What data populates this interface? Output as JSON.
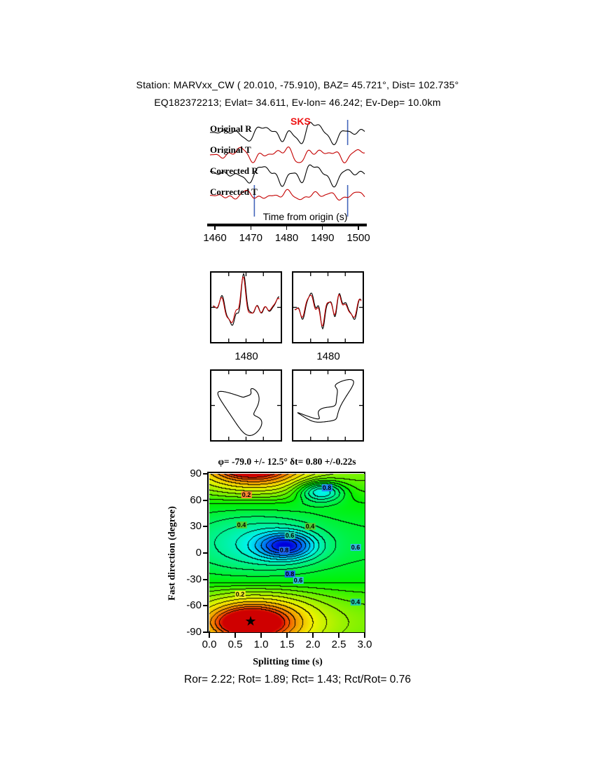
{
  "colors": {
    "black": "#000000",
    "red_trace": "#c40000",
    "blue_marker": "#4466bb",
    "sks_red": "#ee1111",
    "bg": "#ffffff"
  },
  "header": {
    "line1": "Station: MARVxx_CW (  20.010,  -75.910), BAZ=   45.721°, Dist=  102.735°",
    "line2": "EQ182372213; Evlat=  34.611, Ev-lon=  46.242; Ev-Dep= 10.0km"
  },
  "traces": {
    "labels": [
      "Original R",
      "Original T",
      "Corrected R",
      "Corrected T"
    ],
    "phase_label": "SKS",
    "axis_title": "Time from origin (s)"
  },
  "comparison": {
    "x_labels": [
      "1480",
      "1480"
    ]
  },
  "contour": {
    "title": "φ= -79.0 +/- 12.5°  δt= 0.80 +/-0.22s",
    "xlabel": "Splitting time (s)",
    "ylabel": "Fast direction (degree)",
    "x_ticks": [
      "0.0",
      "0.5",
      "1.0",
      "1.5",
      "2.0",
      "2.5",
      "3.0"
    ],
    "y_ticks": [
      "90",
      "60",
      "30",
      "0",
      "-30",
      "-60",
      "-90"
    ],
    "best_dt": 0.8,
    "best_phi": -79,
    "star": "★",
    "contour_labels": [
      {
        "text": "0.2",
        "dt": 0.72,
        "phi": 66,
        "bg": "#ff8833",
        "fg": "#000000"
      },
      {
        "text": "0.8",
        "dt": 2.27,
        "phi": 74,
        "bg": "#2288ee",
        "fg": "#000000"
      },
      {
        "text": "0.4",
        "dt": 0.62,
        "phi": 32,
        "bg": "#55cc33",
        "fg": "#000000"
      },
      {
        "text": "0.4",
        "dt": 1.95,
        "phi": 30,
        "bg": "#55cc33",
        "fg": "#000000"
      },
      {
        "text": "0.6",
        "dt": 1.55,
        "phi": 20,
        "bg": "#22ccaa",
        "fg": "#000000"
      },
      {
        "text": "0.8",
        "dt": 1.45,
        "phi": 3,
        "bg": "#2266ee",
        "fg": "#000000"
      },
      {
        "text": "0.6",
        "dt": 2.82,
        "phi": 6,
        "bg": "#33bbdd",
        "fg": "#000000"
      },
      {
        "text": "0.8",
        "dt": 1.55,
        "phi": -24,
        "bg": "#2266ee",
        "fg": "#000000"
      },
      {
        "text": "0.6",
        "dt": 1.72,
        "phi": -31,
        "bg": "#33bbdd",
        "fg": "#000000"
      },
      {
        "text": "0.2",
        "dt": 0.6,
        "phi": -47,
        "bg": "#eeee22",
        "fg": "#000000"
      },
      {
        "text": "0.4",
        "dt": 2.82,
        "phi": -56,
        "bg": "#22ccaa",
        "fg": "#000000"
      }
    ]
  },
  "footer": {
    "summary": "Ror= 2.22; Rot= 1.89; Rct= 1.43; Rct/Rot= 0.76"
  },
  "chart_data": [
    {
      "type": "line",
      "title": "SKS splitting waveforms (original and corrected radial/transverse)",
      "x_label": "Time from origin (s)",
      "x_range": [
        1460,
        1500
      ],
      "x_ticks": [
        1460,
        1470,
        1480,
        1490,
        1500
      ],
      "window_markers": [
        {
          "time": 1497,
          "span": "upper"
        },
        {
          "time": 1471,
          "span": "lower"
        },
        {
          "time": 1497,
          "span": "lower"
        }
      ],
      "series": [
        {
          "key": "original-r",
          "name": "Original R",
          "color": "#000000",
          "baseline": 27,
          "amp": 10.5,
          "env": [
            0.6,
            0.26,
            0.4
          ],
          "harmonics": [
            [
              1.0,
              3.1,
              0.12
            ],
            [
              0.8,
              5.2,
              0.55
            ],
            [
              0.55,
              8.3,
              0.82
            ],
            [
              0.3,
              13.7,
              0.31
            ]
          ]
        },
        {
          "key": "original-t",
          "name": "Original T",
          "color": "#c40000",
          "baseline": 57,
          "amp": 6.0,
          "env": [
            0.52,
            0.4,
            0.65
          ],
          "harmonics": [
            [
              1.0,
              3.4,
              0.72
            ],
            [
              0.8,
              6.1,
              0.18
            ],
            [
              0.6,
              9.2,
              0.4
            ],
            [
              0.35,
              14.3,
              0.9
            ]
          ]
        },
        {
          "key": "corrected-r",
          "name": "Corrected R",
          "color": "#000000",
          "baseline": 86,
          "amp": 10.5,
          "env": [
            0.58,
            0.28,
            0.42
          ],
          "harmonics": [
            [
              1.0,
              3.1,
              0.17
            ],
            [
              0.8,
              5.2,
              0.5
            ],
            [
              0.55,
              8.3,
              0.77
            ],
            [
              0.3,
              13.7,
              0.36
            ]
          ]
        },
        {
          "key": "corrected-t",
          "name": "Corrected T",
          "color": "#c40000",
          "baseline": 116,
          "amp": 3.6,
          "env": [
            0.5,
            0.5,
            0.75
          ],
          "harmonics": [
            [
              1.0,
              3.8,
              0.42
            ],
            [
              0.8,
              6.6,
              0.83
            ],
            [
              0.6,
              10.1,
              0.11
            ],
            [
              0.35,
              15.2,
              0.63
            ]
          ]
        }
      ]
    },
    {
      "type": "line",
      "title": "Windowed waveform comparison (black vs red)",
      "panels": [
        {
          "series": [
            {
              "key": "cmp1-black",
              "color": "#000000",
              "amp": 20,
              "env": [
                0.42,
                0.2,
                0.3
              ],
              "harmonics": [
                [
                  1.0,
                  2.3,
                  0.1
                ],
                [
                  0.85,
                  3.7,
                  0.62
                ],
                [
                  0.6,
                  6.2,
                  0.3
                ],
                [
                  0.35,
                  9.6,
                  0.81
                ]
              ]
            },
            {
              "key": "cmp1-red",
              "color": "#c40000",
              "amp": 18,
              "env": [
                0.42,
                0.2,
                0.3
              ],
              "harmonics": [
                [
                  1.0,
                  2.3,
                  0.135
                ],
                [
                  0.85,
                  3.7,
                  0.655
                ],
                [
                  0.6,
                  6.2,
                  0.335
                ],
                [
                  0.35,
                  9.6,
                  0.845
                ]
              ]
            }
          ]
        },
        {
          "series": [
            {
              "key": "cmp2-black",
              "color": "#000000",
              "amp": 17,
              "env": [
                0.5,
                0.24,
                0.38
              ],
              "harmonics": [
                [
                  1.0,
                  2.6,
                  0.55
                ],
                [
                  0.85,
                  4.1,
                  0.2
                ],
                [
                  0.6,
                  6.8,
                  0.75
                ],
                [
                  0.35,
                  10.4,
                  0.4
                ]
              ]
            },
            {
              "key": "cmp2-red",
              "color": "#c40000",
              "amp": 15,
              "env": [
                0.5,
                0.24,
                0.38
              ],
              "harmonics": [
                [
                  1.0,
                  2.6,
                  0.585
                ],
                [
                  0.85,
                  4.1,
                  0.235
                ],
                [
                  0.6,
                  6.8,
                  0.785
                ],
                [
                  0.35,
                  10.4,
                  0.435
                ]
              ]
            }
          ]
        }
      ]
    },
    {
      "type": "scatter",
      "title": "Particle motion (original, corrected)",
      "panels": [
        {
          "x_harmonics": [
            [
              22,
              1,
              0.0
            ],
            [
              11,
              2,
              0.35
            ],
            [
              6,
              3,
              0.7
            ],
            [
              3,
              5,
              0.15
            ]
          ],
          "y_harmonics": [
            [
              26,
              1,
              0.27
            ],
            [
              12,
              2,
              0.8
            ],
            [
              7,
              3,
              0.05
            ],
            [
              4,
              4,
              0.55
            ]
          ]
        },
        {
          "x_harmonics": [
            [
              28,
              1,
              0.05
            ],
            [
              10,
              2,
              0.5
            ],
            [
              6,
              4,
              0.2
            ],
            [
              3,
              6,
              0.65
            ]
          ],
          "y_harmonics": [
            [
              25,
              1,
              0.1
            ],
            [
              11,
              2,
              0.85
            ],
            [
              5,
              3,
              0.45
            ],
            [
              3,
              5,
              0.9
            ]
          ]
        }
      ]
    },
    {
      "type": "heatmap",
      "title": "Splitting parameter misfit surface",
      "xlabel": "Splitting time (s)",
      "ylabel": "Fast direction (degree)",
      "x_range": [
        0,
        3
      ],
      "y_range": [
        -90,
        90
      ],
      "x_ticks": [
        0.0,
        0.5,
        1.0,
        1.5,
        2.0,
        2.5,
        3.0
      ],
      "y_ticks": [
        90,
        60,
        30,
        0,
        -30,
        -60,
        -90
      ],
      "best_fit": {
        "fast_direction_deg": -79.0,
        "fast_direction_err_deg": 12.5,
        "delay_time_s": 0.8,
        "delay_time_err_s": 0.22
      },
      "contour_levels_labeled": [
        0.2,
        0.4,
        0.6,
        0.8
      ],
      "n_levels": 20,
      "legend": "none",
      "grid": "off",
      "field_model": {
        "base": 0.5,
        "phi0": -79,
        "pos_gain": 0.42,
        "neg_gain": 0.2,
        "env_c": 0.9,
        "env_w": 0.85,
        "env_base": 0.28,
        "gaussians": [
          [
            0.8,
            -79,
            0.55,
            13,
            0.38,
            1
          ],
          [
            1.5,
            8,
            0.55,
            15,
            -0.34,
            0
          ],
          [
            2.15,
            70,
            0.45,
            12,
            -0.34,
            0
          ]
        ]
      }
    }
  ]
}
